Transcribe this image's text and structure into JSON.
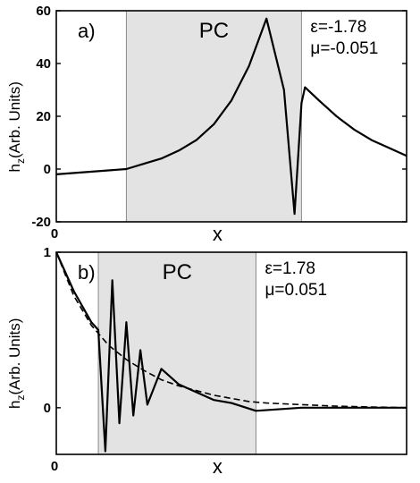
{
  "chart_data": [
    {
      "type": "line",
      "panel_label": "a)",
      "region_label": "PC",
      "region_x": [
        0.2,
        0.7
      ],
      "params": [
        "ε=-1.78",
        "μ=-0.051"
      ],
      "xlabel": "x",
      "ylabel_main": "h",
      "ylabel_sub": "z",
      "ylabel_rest": "(Arb. Units)",
      "xlim": [
        0,
        1
      ],
      "ylim": [
        -20,
        60
      ],
      "yticks": [
        -20,
        0,
        20,
        40,
        60
      ],
      "xtick_labels": [
        "0"
      ],
      "series": [
        {
          "style": "solid",
          "x": [
            0.0,
            0.2,
            0.25,
            0.3,
            0.35,
            0.4,
            0.45,
            0.5,
            0.55,
            0.6,
            0.65,
            0.68,
            0.7,
            0.71,
            0.75,
            0.8,
            0.85,
            0.9,
            0.95,
            1.0
          ],
          "y": [
            -2,
            0,
            2,
            4,
            7,
            11,
            17,
            26,
            39,
            57,
            30,
            -17,
            25,
            31,
            26,
            20,
            15,
            11,
            8,
            5
          ]
        }
      ]
    },
    {
      "type": "line",
      "panel_label": "b)",
      "region_label": "PC",
      "region_x": [
        0.12,
        0.57
      ],
      "params": [
        "ε=1.78",
        "μ=0.051"
      ],
      "xlabel": "x",
      "ylabel_main": "h",
      "ylabel_sub": "z",
      "ylabel_rest": "(Arb. Units)",
      "xlim": [
        0,
        1
      ],
      "ylim": [
        -0.3,
        1.0
      ],
      "yticks": [
        0,
        1
      ],
      "xtick_labels": [
        "0"
      ],
      "series": [
        {
          "style": "solid",
          "x": [
            0.0,
            0.05,
            0.1,
            0.12,
            0.14,
            0.16,
            0.18,
            0.2,
            0.22,
            0.24,
            0.26,
            0.3,
            0.35,
            0.4,
            0.45,
            0.5,
            0.57,
            0.7,
            0.85,
            1.0
          ],
          "y": [
            1.0,
            0.75,
            0.55,
            0.5,
            -0.28,
            0.82,
            -0.1,
            0.55,
            -0.05,
            0.37,
            0.02,
            0.25,
            0.15,
            0.1,
            0.05,
            0.03,
            -0.02,
            0.0,
            0.0,
            0.0
          ]
        },
        {
          "style": "dashed",
          "x": [
            0.0,
            0.05,
            0.1,
            0.15,
            0.2,
            0.25,
            0.3,
            0.35,
            0.4,
            0.45,
            0.5,
            0.55,
            0.6,
            0.7,
            0.8,
            0.9,
            1.0
          ],
          "y": [
            1.0,
            0.72,
            0.53,
            0.4,
            0.31,
            0.24,
            0.18,
            0.14,
            0.11,
            0.08,
            0.06,
            0.04,
            0.03,
            0.02,
            0.01,
            0.005,
            0.0
          ]
        }
      ]
    }
  ]
}
